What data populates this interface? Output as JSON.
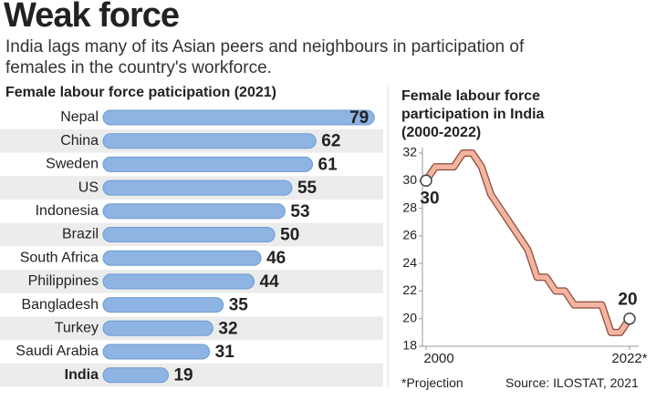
{
  "title": "Weak force",
  "subtitle": "India lags many of its Asian peers and neighbours in participation of females in the country's workforce.",
  "footnote": "*Projection",
  "source": "Source: ILOSTAT, 2021",
  "chart_data": [
    {
      "type": "hbar",
      "title": "Female labour force paticipation (2021)",
      "categories": [
        "Nepal",
        "China",
        "Sweden",
        "US",
        "Indonesia",
        "Brazil",
        "South Africa",
        "Philippines",
        "Bangladesh",
        "Turkey",
        "Saudi Arabia",
        "India"
      ],
      "values": [
        79,
        62,
        61,
        55,
        53,
        50,
        46,
        44,
        35,
        32,
        31,
        19
      ],
      "color": "#8db4e2",
      "xlim": [
        0,
        80
      ]
    },
    {
      "type": "line",
      "title": "Female labour force participation in India (2000-2022)",
      "x": [
        2000,
        2001,
        2002,
        2003,
        2004,
        2005,
        2006,
        2007,
        2008,
        2009,
        2010,
        2011,
        2012,
        2013,
        2014,
        2015,
        2016,
        2017,
        2018,
        2019,
        2020,
        2021,
        2022
      ],
      "values": [
        30,
        31,
        31,
        31,
        32,
        32,
        31,
        29,
        28,
        27,
        26,
        25,
        23,
        23,
        22,
        22,
        21,
        21,
        21,
        21,
        19,
        19,
        20
      ],
      "color": "#f4b5a0",
      "xlim": [
        2000,
        2022
      ],
      "xticks": [
        2000,
        {
          "value": 2022,
          "label": "2022*"
        }
      ],
      "ylim": [
        18,
        32
      ],
      "yticks": [
        18,
        20,
        22,
        24,
        26,
        28,
        30,
        32
      ]
    }
  ]
}
